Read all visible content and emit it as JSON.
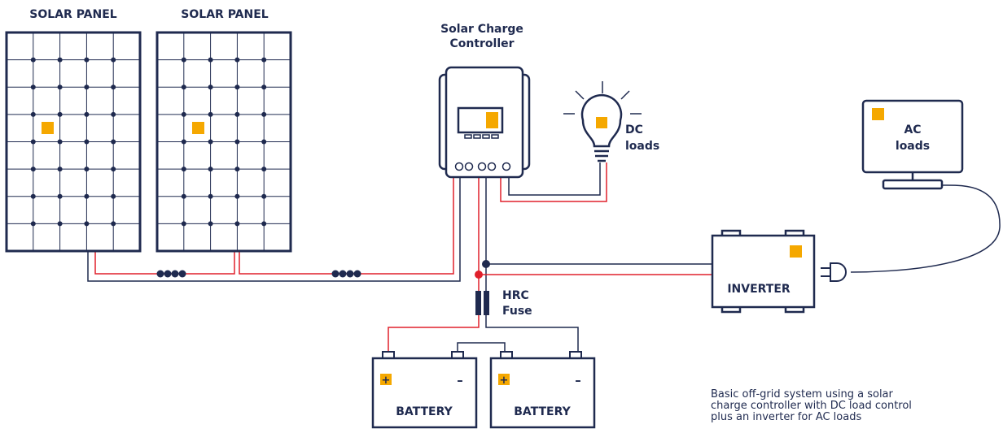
{
  "panels": [
    {
      "label": "SOLAR PANEL"
    },
    {
      "label": "SOLAR PANEL"
    }
  ],
  "controller": {
    "label": [
      "Solar Charge",
      "Controller"
    ]
  },
  "dc_loads": {
    "label": [
      "DC",
      "loads"
    ]
  },
  "ac_loads": {
    "label": [
      "AC",
      "loads"
    ]
  },
  "inverter": {
    "label": "INVERTER"
  },
  "fuse": {
    "label": [
      "HRC",
      "Fuse"
    ]
  },
  "batteries": [
    {
      "label": "BATTERY",
      "positive": "+",
      "negative": "–"
    },
    {
      "label": "BATTERY",
      "positive": "+",
      "negative": "–"
    }
  ],
  "caption": [
    "Basic off-grid system using a solar",
    "charge controller with DC load control",
    "plus an inverter for AC loads"
  ]
}
